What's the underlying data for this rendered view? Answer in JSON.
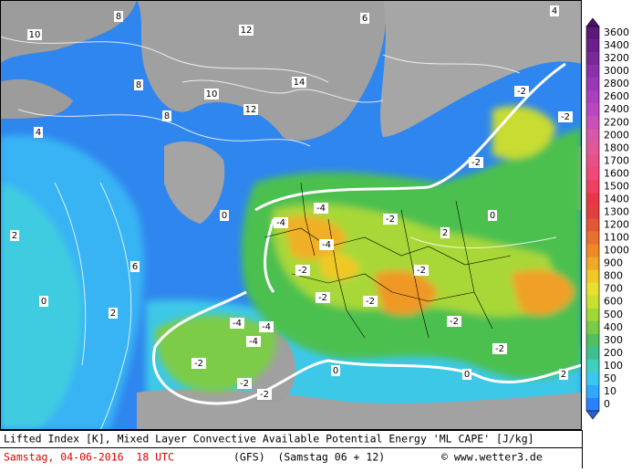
{
  "footer": {
    "description": "Lifted Index [K], Mixed Layer Convective Available Potential Energy 'ML CAPE' [J/kg]",
    "date": "Samstag, 04-06-2016  18 UTC",
    "model": "(GFS)  (Samstag 06 + 12)",
    "credit": "© www.wetter3.de"
  },
  "colorbar": {
    "labels": [
      "3600",
      "3400",
      "3200",
      "3000",
      "2800",
      "2600",
      "2400",
      "2200",
      "2000",
      "1800",
      "1700",
      "1600",
      "1500",
      "1400",
      "1300",
      "1200",
      "1100",
      "1000",
      "900",
      "800",
      "700",
      "600",
      "500",
      "400",
      "300",
      "200",
      "100",
      "50",
      "10",
      "0"
    ],
    "colors": [
      "#5a1a78",
      "#6a2088",
      "#7a2898",
      "#8a30a8",
      "#9a38b8",
      "#aa40c0",
      "#b848c0",
      "#c850b8",
      "#d858a8",
      "#e05898",
      "#e85088",
      "#f04878",
      "#f04060",
      "#e83848",
      "#e04040",
      "#e05838",
      "#e87030",
      "#f08828",
      "#f0a828",
      "#f0c828",
      "#e8e030",
      "#c8e030",
      "#a0d838",
      "#78cc48",
      "#50c060",
      "#40c090",
      "#40d0c0",
      "#38c8f0",
      "#30a8ff",
      "#2a80ff"
    ]
  },
  "map_labels": [
    "10",
    "8",
    "12",
    "10",
    "8",
    "4",
    "2",
    "0",
    "6",
    "2",
    "8",
    "12",
    "14",
    "-2",
    "-2",
    "-2",
    "-4",
    "-4",
    "-4",
    "-2",
    "-2",
    "-2",
    "-2",
    "-2",
    "-4",
    "-4",
    "-4",
    "-2",
    "-2",
    "-2",
    "-2",
    "-2",
    "0",
    "0",
    "0",
    "0",
    "2",
    "4",
    "6",
    "2"
  ]
}
